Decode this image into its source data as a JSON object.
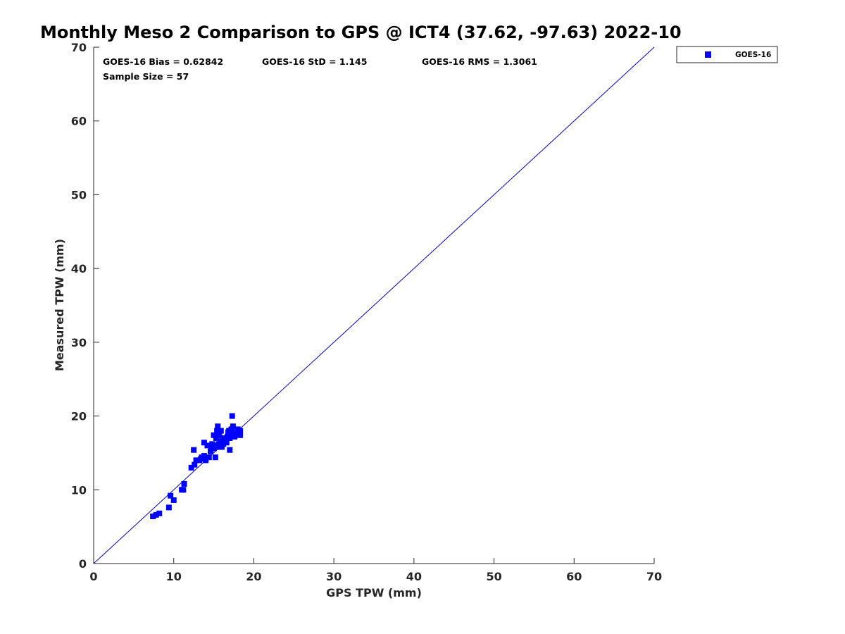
{
  "colors": {
    "series": "#0000ff",
    "line": "#0000cc",
    "axis": "#262626",
    "text": "#000000"
  },
  "chart_data": {
    "type": "scatter",
    "title": "Monthly Meso 2 Comparison to GPS @ ICT4 (37.62, -97.63) 2022-10",
    "xlabel": "GPS TPW (mm)",
    "ylabel": "Measured TPW (mm)",
    "xlim": [
      0,
      70
    ],
    "ylim": [
      0,
      70
    ],
    "xticks": [
      "0",
      "10",
      "20",
      "30",
      "40",
      "50",
      "60",
      "70"
    ],
    "yticks": [
      "0",
      "10",
      "20",
      "30",
      "40",
      "50",
      "60",
      "70"
    ],
    "grid": false,
    "legend_position": "outside-top-right",
    "reference_line": {
      "type": "one-to-one",
      "x": [
        0,
        70
      ],
      "y": [
        0,
        70
      ]
    },
    "stats": {
      "bias": "GOES-16 Bias = 0.62842",
      "std": "GOES-16 StD = 1.145",
      "rms": "GOES-16 RMS = 1.3061",
      "sample": "Sample Size = 57"
    },
    "series": [
      {
        "name": "GOES-16",
        "marker": "square",
        "points": [
          [
            7.4,
            6.4
          ],
          [
            7.8,
            6.6
          ],
          [
            8.2,
            6.8
          ],
          [
            9.4,
            7.6
          ],
          [
            9.6,
            9.2
          ],
          [
            10.0,
            8.6
          ],
          [
            11.0,
            10.0
          ],
          [
            11.2,
            10.0
          ],
          [
            11.3,
            10.8
          ],
          [
            12.2,
            13.0
          ],
          [
            12.6,
            13.4
          ],
          [
            12.5,
            15.4
          ],
          [
            12.8,
            14.0
          ],
          [
            13.2,
            14.0
          ],
          [
            13.5,
            14.4
          ],
          [
            13.8,
            14.6
          ],
          [
            14.0,
            14.0
          ],
          [
            13.8,
            16.4
          ],
          [
            14.2,
            16.0
          ],
          [
            14.4,
            14.4
          ],
          [
            14.6,
            15.2
          ],
          [
            14.8,
            16.2
          ],
          [
            15.0,
            17.4
          ],
          [
            15.0,
            15.6
          ],
          [
            15.2,
            14.4
          ],
          [
            15.3,
            16.0
          ],
          [
            15.3,
            17.0
          ],
          [
            15.4,
            18.0
          ],
          [
            15.5,
            18.6
          ],
          [
            15.6,
            16.2
          ],
          [
            15.7,
            17.4
          ],
          [
            15.8,
            16.6
          ],
          [
            15.9,
            18.0
          ],
          [
            16.0,
            15.8
          ],
          [
            16.1,
            17.0
          ],
          [
            16.2,
            16.2
          ],
          [
            16.5,
            16.8
          ],
          [
            16.7,
            17.2
          ],
          [
            16.8,
            17.8
          ],
          [
            17.0,
            15.4
          ],
          [
            17.0,
            17.0
          ],
          [
            17.2,
            18.2
          ],
          [
            17.3,
            17.6
          ],
          [
            17.3,
            20.0
          ],
          [
            17.4,
            18.6
          ],
          [
            17.5,
            17.6
          ],
          [
            17.6,
            17.2
          ],
          [
            17.8,
            17.8
          ],
          [
            18.0,
            18.2
          ],
          [
            18.2,
            17.6
          ],
          [
            18.3,
            18.0
          ],
          [
            18.3,
            17.4
          ],
          [
            16.6,
            16.4
          ],
          [
            15.6,
            15.8
          ],
          [
            14.7,
            15.6
          ],
          [
            13.4,
            14.2
          ],
          [
            16.9,
            18.0
          ]
        ]
      }
    ]
  }
}
